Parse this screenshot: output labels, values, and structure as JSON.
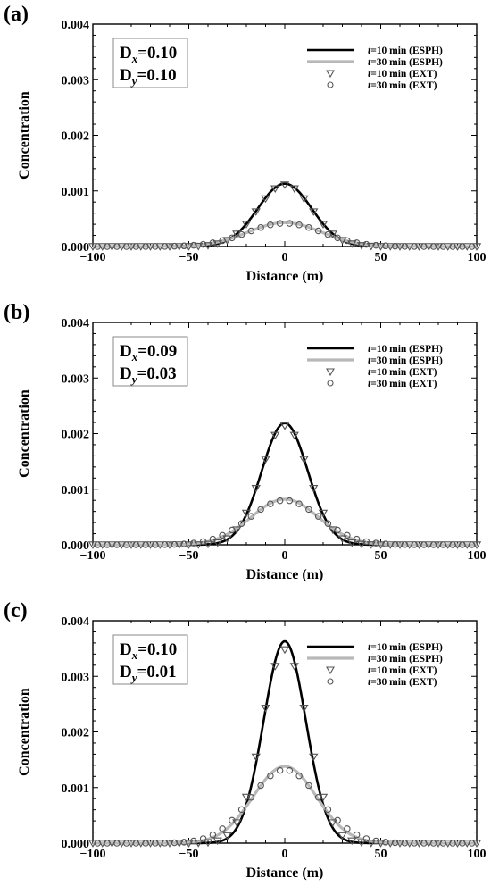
{
  "chart_data": [
    {
      "type": "line",
      "panel": "(a)",
      "xlabel": "Distance (m)",
      "ylabel": "Concentration",
      "xlim": [
        -100,
        100
      ],
      "ylim": [
        0,
        0.004
      ],
      "xticks": [
        "−100",
        "−50",
        "0",
        "50",
        "100"
      ],
      "yticks": [
        "0.000",
        "0.001",
        "0.002",
        "0.003",
        "0.004"
      ],
      "params": {
        "dx_base": "D",
        "dx_sub": "x",
        "dx_value": "=0.10",
        "dy_base": "D",
        "dy_sub": "y",
        "dy_value": "=0.10"
      },
      "legend_position": "top-right",
      "series": [
        {
          "name": "t=10 min (ESPH)",
          "name_italic": "t",
          "name_rest": "=10 min (ESPH)",
          "style": "line",
          "color": "#000000",
          "peak": 0.00113,
          "sigma": 14.0
        },
        {
          "name": "t=30 min (ESPH)",
          "name_italic": "t",
          "name_rest": "=30 min (ESPH)",
          "style": "line",
          "color": "#b8b8b8",
          "peak": 0.00043,
          "sigma": 19.0
        },
        {
          "name": "t=10 min (EXT)",
          "name_italic": "t",
          "name_rest": "=10 min (EXT)",
          "style": "triangle",
          "color": "#555555",
          "peak": 0.00111,
          "sigma": 14.0
        },
        {
          "name": "t=30 min (EXT)",
          "name_italic": "t",
          "name_rest": "=30 min (EXT)",
          "style": "circle",
          "color": "#555555",
          "peak": 0.00042,
          "sigma": 19.5
        }
      ]
    },
    {
      "type": "line",
      "panel": "(b)",
      "xlabel": "Distance (m)",
      "ylabel": "Concentration",
      "xlim": [
        -100,
        100
      ],
      "ylim": [
        0,
        0.004
      ],
      "xticks": [
        "−100",
        "−50",
        "0",
        "50",
        "100"
      ],
      "yticks": [
        "0.000",
        "0.001",
        "0.002",
        "0.003",
        "0.004"
      ],
      "params": {
        "dx_base": "D",
        "dx_sub": "x",
        "dx_value": "=0.09",
        "dy_base": "D",
        "dy_sub": "y",
        "dy_value": "=0.03"
      },
      "legend_position": "top-right",
      "series": [
        {
          "name": "t=10 min (ESPH)",
          "name_italic": "t",
          "name_rest": "=10 min (ESPH)",
          "style": "line",
          "color": "#000000",
          "peak": 0.00219,
          "sigma": 12.0
        },
        {
          "name": "t=30 min (ESPH)",
          "name_italic": "t",
          "name_rest": "=30 min (ESPH)",
          "style": "line",
          "color": "#b8b8b8",
          "peak": 0.00082,
          "sigma": 17.5
        },
        {
          "name": "t=10 min (EXT)",
          "name_italic": "t",
          "name_rest": "=10 min (EXT)",
          "style": "triangle",
          "color": "#555555",
          "peak": 0.00214,
          "sigma": 12.3
        },
        {
          "name": "t=30 min (EXT)",
          "name_italic": "t",
          "name_rest": "=30 min (EXT)",
          "style": "circle",
          "color": "#555555",
          "peak": 0.0008,
          "sigma": 18.5
        }
      ]
    },
    {
      "type": "line",
      "panel": "(c)",
      "xlabel": "Distance (m)",
      "ylabel": "Concentration",
      "xlim": [
        -100,
        100
      ],
      "ylim": [
        0,
        0.004
      ],
      "xticks": [
        "−100",
        "−50",
        "0",
        "50",
        "100"
      ],
      "yticks": [
        "0.000",
        "0.001",
        "0.002",
        "0.003",
        "0.004"
      ],
      "params": {
        "dx_base": "D",
        "dx_sub": "x",
        "dx_value": "=0.10",
        "dy_base": "D",
        "dy_sub": "y",
        "dy_value": "=0.01"
      },
      "legend_position": "top-right",
      "series": [
        {
          "name": "t=10 min (ESPH)",
          "name_italic": "t",
          "name_rest": "=10 min (ESPH)",
          "style": "line",
          "color": "#000000",
          "peak": 0.00363,
          "sigma": 11.0
        },
        {
          "name": "t=30 min (ESPH)",
          "name_italic": "t",
          "name_rest": "=30 min (ESPH)",
          "style": "line",
          "color": "#b8b8b8",
          "peak": 0.00138,
          "sigma": 16.5
        },
        {
          "name": "t=10 min (EXT)",
          "name_italic": "t",
          "name_rest": "=10 min (EXT)",
          "style": "triangle",
          "color": "#555555",
          "peak": 0.00348,
          "sigma": 11.8
        },
        {
          "name": "t=30 min (EXT)",
          "name_italic": "t",
          "name_rest": "=30 min (EXT)",
          "style": "circle",
          "color": "#555555",
          "peak": 0.00132,
          "sigma": 18.0
        }
      ]
    }
  ]
}
